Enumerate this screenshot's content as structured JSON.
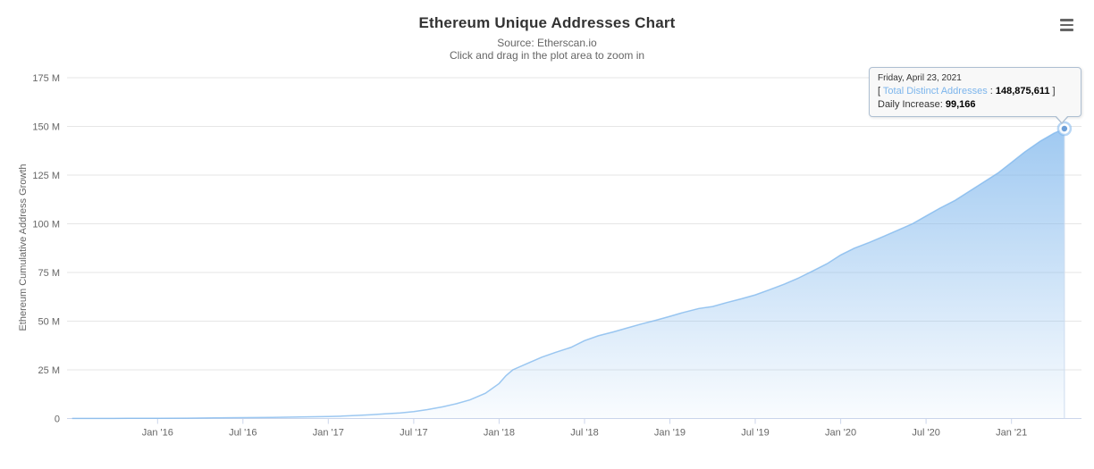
{
  "header": {
    "title": "Ethereum Unique Addresses Chart",
    "subtitle_source": "Source: Etherscan.io",
    "subtitle_hint": "Click and drag in the plot area to zoom in"
  },
  "menu": {
    "icon": "hamburger-menu-icon",
    "color": "#666666"
  },
  "tooltip": {
    "date": "Friday, April 23, 2021",
    "open_bracket": "[",
    "series_label": "Total Distinct Addresses",
    "colon": ":",
    "value": "148,875,611",
    "close_bracket": "]",
    "daily_label": "Daily Increase:",
    "daily_value": "99,166",
    "series_label_color": "#7cb5ec",
    "background": "#f8f8f8",
    "border_color": "#aebfd2"
  },
  "chart_data": {
    "type": "area",
    "title": "Ethereum Unique Addresses Chart",
    "subtitle": "Source: Etherscan.io",
    "xlabel": "",
    "ylabel": "Ethereum Cumulative Address Growth",
    "legend": "none",
    "grid": "horizontal",
    "xlim": [
      2015.47,
      2021.41
    ],
    "ylim": [
      0,
      175
    ],
    "y_unit": "M addresses (millions)",
    "y_ticks": [
      {
        "label": "0",
        "v": 0
      },
      {
        "label": "25 M",
        "v": 25
      },
      {
        "label": "50 M",
        "v": 50
      },
      {
        "label": "75 M",
        "v": 75
      },
      {
        "label": "100 M",
        "v": 100
      },
      {
        "label": "125 M",
        "v": 125
      },
      {
        "label": "150 M",
        "v": 150
      },
      {
        "label": "175 M",
        "v": 175
      }
    ],
    "x_ticks": [
      {
        "label": "Jan '16",
        "t": 2016.0
      },
      {
        "label": "Jul '16",
        "t": 2016.5
      },
      {
        "label": "Jan '17",
        "t": 2017.0
      },
      {
        "label": "Jul '17",
        "t": 2017.5
      },
      {
        "label": "Jan '18",
        "t": 2018.0
      },
      {
        "label": "Jul '18",
        "t": 2018.5
      },
      {
        "label": "Jan '19",
        "t": 2019.0
      },
      {
        "label": "Jul '19",
        "t": 2019.5
      },
      {
        "label": "Jan '20",
        "t": 2020.0
      },
      {
        "label": "Jul '20",
        "t": 2020.5
      },
      {
        "label": "Jan '21",
        "t": 2021.0
      }
    ],
    "colors": {
      "line": "#7cb5ec",
      "fill_top_opacity": 0.85,
      "fill_bottom_opacity": 0.04,
      "gridline": "#e6e6e6",
      "axis_line": "#ccd6eb",
      "tick_mark": "#ccd6eb",
      "crosshair": "#cddcef",
      "marker_fill": "#6d9fd8"
    },
    "series": [
      {
        "name": "Total Distinct Addresses",
        "points": [
          [
            2015.5,
            0.03
          ],
          [
            2015.67,
            0.06
          ],
          [
            2015.83,
            0.08
          ],
          [
            2016.0,
            0.1
          ],
          [
            2016.17,
            0.2
          ],
          [
            2016.33,
            0.32
          ],
          [
            2016.5,
            0.45
          ],
          [
            2016.67,
            0.6
          ],
          [
            2016.83,
            0.78
          ],
          [
            2017.0,
            1.0
          ],
          [
            2017.08,
            1.25
          ],
          [
            2017.17,
            1.6
          ],
          [
            2017.25,
            1.95
          ],
          [
            2017.33,
            2.4
          ],
          [
            2017.42,
            2.9
          ],
          [
            2017.5,
            3.6
          ],
          [
            2017.58,
            4.6
          ],
          [
            2017.67,
            6.0
          ],
          [
            2017.75,
            7.6
          ],
          [
            2017.83,
            9.6
          ],
          [
            2017.92,
            13.0
          ],
          [
            2018.0,
            18.0
          ],
          [
            2018.04,
            22.0
          ],
          [
            2018.08,
            25.0
          ],
          [
            2018.17,
            28.5
          ],
          [
            2018.25,
            31.5
          ],
          [
            2018.33,
            34.0
          ],
          [
            2018.42,
            36.5
          ],
          [
            2018.5,
            40.0
          ],
          [
            2018.58,
            42.5
          ],
          [
            2018.67,
            44.5
          ],
          [
            2018.75,
            46.5
          ],
          [
            2018.83,
            48.5
          ],
          [
            2018.92,
            50.5
          ],
          [
            2019.0,
            52.5
          ],
          [
            2019.08,
            54.5
          ],
          [
            2019.17,
            56.5
          ],
          [
            2019.25,
            57.5
          ],
          [
            2019.33,
            59.5
          ],
          [
            2019.42,
            61.5
          ],
          [
            2019.5,
            63.5
          ],
          [
            2019.58,
            66.0
          ],
          [
            2019.67,
            69.0
          ],
          [
            2019.75,
            72.0
          ],
          [
            2019.83,
            75.5
          ],
          [
            2019.92,
            79.5
          ],
          [
            2020.0,
            84.0
          ],
          [
            2020.08,
            87.5
          ],
          [
            2020.17,
            90.5
          ],
          [
            2020.25,
            93.5
          ],
          [
            2020.33,
            96.5
          ],
          [
            2020.42,
            100.0
          ],
          [
            2020.5,
            104.0
          ],
          [
            2020.58,
            108.0
          ],
          [
            2020.67,
            112.0
          ],
          [
            2020.75,
            116.5
          ],
          [
            2020.83,
            121.0
          ],
          [
            2020.92,
            126.0
          ],
          [
            2021.0,
            131.5
          ],
          [
            2021.08,
            137.0
          ],
          [
            2021.17,
            142.5
          ],
          [
            2021.25,
            146.5
          ],
          [
            2021.31,
            148.875611
          ]
        ]
      }
    ],
    "highlight_point": {
      "t": 2021.31,
      "value": 148.875611,
      "date": "Friday, April 23, 2021",
      "display_value": "148,875,611",
      "daily_increase": "99,166"
    }
  }
}
